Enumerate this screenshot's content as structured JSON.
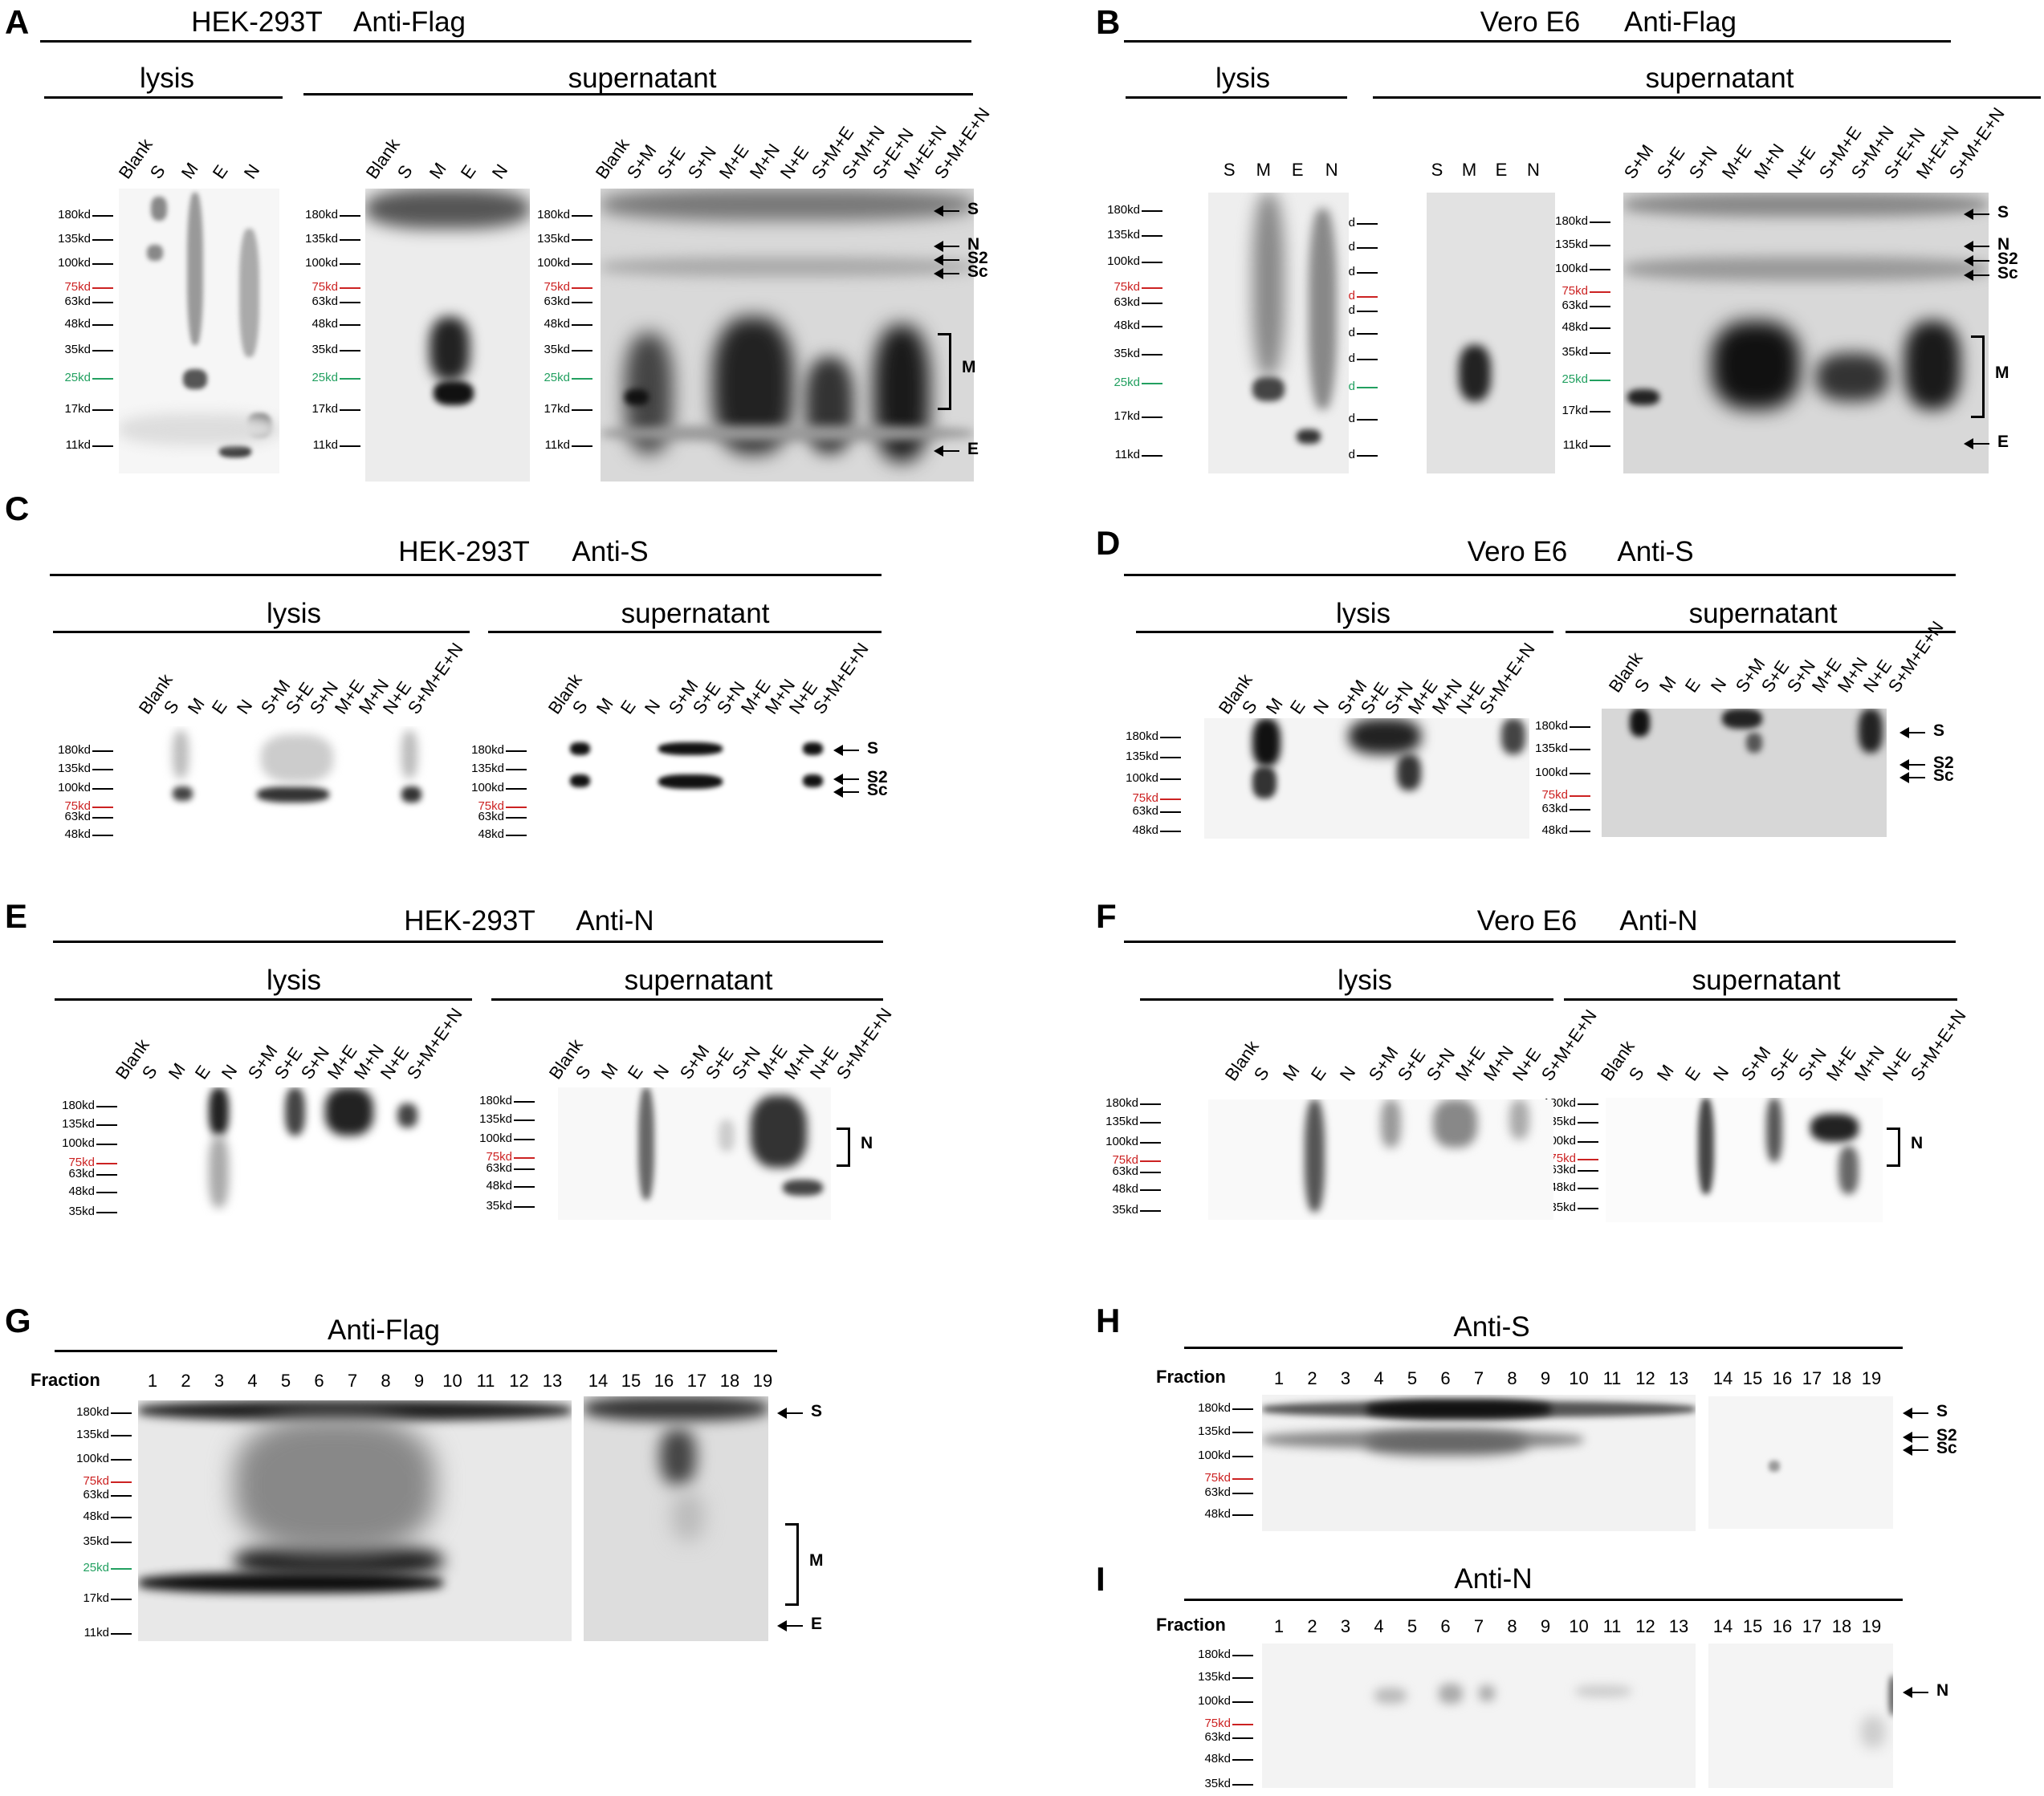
{
  "marker_colors": {
    "75kd": "#cc2222",
    "25kd": "#22a060",
    "default": "#000000"
  },
  "panelA": {
    "label": "A",
    "cell": "HEK-293T",
    "antibody": "Anti-Flag",
    "section1": "lysis",
    "section2": "supernatant",
    "lanes1": [
      "Blank",
      "S",
      "M",
      "E",
      "N"
    ],
    "lanes2": [
      "Blank",
      "S",
      "M",
      "E",
      "N"
    ],
    "lanes3": [
      "Blank",
      "S+M",
      "S+E",
      "S+N",
      "M+E",
      "M+N",
      "N+E",
      "S+M+E",
      "S+M+N",
      "S+E+N",
      "M+E+N",
      "S+M+E+N"
    ],
    "markers": [
      "180kd",
      "135kd",
      "100kd",
      "75kd",
      "63kd",
      "48kd",
      "35kd",
      "25kd",
      "17kd",
      "11kd"
    ],
    "annotations": [
      "S",
      "N",
      "S2",
      "Sc",
      "M",
      "E"
    ]
  },
  "panelB": {
    "label": "B",
    "cell": "Vero E6",
    "antibody": "Anti-Flag",
    "section1": "lysis",
    "section2": "supernatant",
    "lanes1": [
      "S",
      "M",
      "E",
      "N"
    ],
    "lanes2": [
      "S",
      "M",
      "E",
      "N"
    ],
    "lanes3": [
      "S+M",
      "S+E",
      "S+N",
      "M+E",
      "M+N",
      "N+E",
      "S+M+E",
      "S+M+N",
      "S+E+N",
      "M+E+N",
      "S+M+E+N"
    ],
    "markers": [
      "180kd",
      "135kd",
      "100kd",
      "75kd",
      "63kd",
      "48kd",
      "35kd",
      "25kd",
      "17kd",
      "11kd"
    ],
    "annotations": [
      "S",
      "N",
      "S2",
      "Sc",
      "M",
      "E"
    ]
  },
  "panelC": {
    "label": "C",
    "cell": "HEK-293T",
    "antibody": "Anti-S",
    "section1": "lysis",
    "section2": "supernatant",
    "lanes": [
      "Blank",
      "S",
      "M",
      "E",
      "N",
      "S+M",
      "S+E",
      "S+N",
      "M+E",
      "M+N",
      "N+E",
      "S+M+E+N"
    ],
    "markers": [
      "180kd",
      "135kd",
      "100kd",
      "75kd",
      "63kd",
      "48kd"
    ],
    "annotations": [
      "S",
      "S2",
      "Sc"
    ]
  },
  "panelD": {
    "label": "D",
    "cell": "Vero E6",
    "antibody": "Anti-S",
    "section1": "lysis",
    "section2": "supernatant",
    "lanes": [
      "Blank",
      "S",
      "M",
      "E",
      "N",
      "S+M",
      "S+E",
      "S+N",
      "M+E",
      "M+N",
      "N+E",
      "S+M+E+N"
    ],
    "markers": [
      "180kd",
      "135kd",
      "100kd",
      "75kd",
      "63kd",
      "48kd"
    ],
    "annotations": [
      "S",
      "S2",
      "Sc"
    ]
  },
  "panelE": {
    "label": "E",
    "cell": "HEK-293T",
    "antibody": "Anti-N",
    "section1": "lysis",
    "section2": "supernatant",
    "lanes": [
      "Blank",
      "S",
      "M",
      "E",
      "N",
      "S+M",
      "S+E",
      "S+N",
      "M+E",
      "M+N",
      "N+E",
      "S+M+E+N"
    ],
    "markers": [
      "180kd",
      "135kd",
      "100kd",
      "75kd",
      "63kd",
      "48kd",
      "35kd"
    ],
    "annotations": [
      "N"
    ]
  },
  "panelF": {
    "label": "F",
    "cell": "Vero E6",
    "antibody": "Anti-N",
    "section1": "lysis",
    "section2": "supernatant",
    "lanes": [
      "Blank",
      "S",
      "M",
      "E",
      "N",
      "S+M",
      "S+E",
      "S+N",
      "M+E",
      "M+N",
      "N+E",
      "S+M+E+N"
    ],
    "markers": [
      "180kd",
      "135kd",
      "100kd",
      "75kd",
      "63kd",
      "48kd",
      "35kd"
    ],
    "annotations": [
      "N"
    ]
  },
  "panelG": {
    "label": "G",
    "antibody": "Anti-Flag",
    "fraction_label": "Fraction",
    "fractions": [
      "1",
      "2",
      "3",
      "4",
      "5",
      "6",
      "7",
      "8",
      "9",
      "10",
      "11",
      "12",
      "13",
      "14",
      "15",
      "16",
      "17",
      "18",
      "19"
    ],
    "markers": [
      "180kd",
      "135kd",
      "100kd",
      "75kd",
      "63kd",
      "48kd",
      "35kd",
      "25kd",
      "17kd",
      "11kd"
    ],
    "annotations": [
      "S",
      "M",
      "E"
    ]
  },
  "panelH": {
    "label": "H",
    "antibody": "Anti-S",
    "fraction_label": "Fraction",
    "fractions": [
      "1",
      "2",
      "3",
      "4",
      "5",
      "6",
      "7",
      "8",
      "9",
      "10",
      "11",
      "12",
      "13",
      "14",
      "15",
      "16",
      "17",
      "18",
      "19"
    ],
    "markers": [
      "180kd",
      "135kd",
      "100kd",
      "75kd",
      "63kd",
      "48kd"
    ],
    "annotations": [
      "S",
      "S2",
      "Sc"
    ]
  },
  "panelI": {
    "label": "I",
    "antibody": "Anti-N",
    "fraction_label": "Fraction",
    "fractions": [
      "1",
      "2",
      "3",
      "4",
      "5",
      "6",
      "7",
      "8",
      "9",
      "10",
      "11",
      "12",
      "13",
      "14",
      "15",
      "16",
      "17",
      "18",
      "19"
    ],
    "markers": [
      "180kd",
      "135kd",
      "100kd",
      "75kd",
      "63kd",
      "48kd",
      "35kd"
    ],
    "annotations": [
      "N"
    ]
  }
}
